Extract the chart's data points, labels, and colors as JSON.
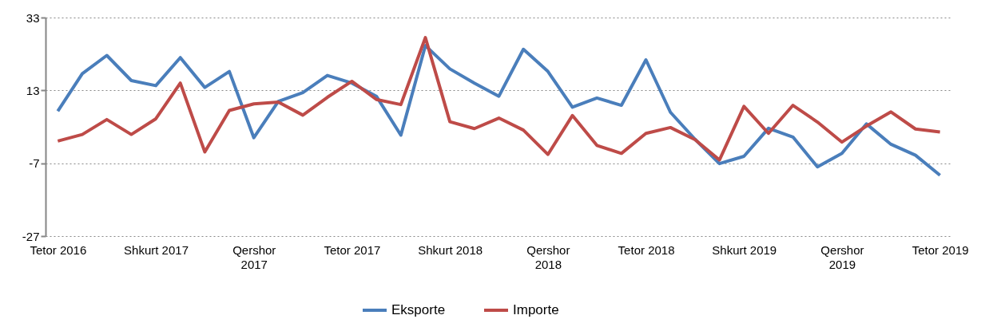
{
  "chart_data": {
    "type": "line",
    "categories": [
      "Tetor 2016",
      null,
      null,
      null,
      "Shkurt 2017",
      null,
      null,
      null,
      "Qershor 2017",
      null,
      null,
      null,
      "Tetor 2017",
      null,
      null,
      null,
      "Shkurt 2018",
      null,
      null,
      null,
      "Qershor 2018",
      null,
      null,
      null,
      "Tetor 2018",
      null,
      null,
      null,
      "Shkurt 2019",
      null,
      null,
      null,
      "Qershor 2019",
      null,
      null,
      null,
      "Tetor 2019"
    ],
    "series": [
      {
        "name": "Eksporte",
        "color": "#4a7ebb",
        "values": [
          7.3,
          17.6,
          22.6,
          15.7,
          14.3,
          22.0,
          13.8,
          18.2,
          0,
          10.0,
          12.4,
          17.1,
          15.0,
          11.4,
          0.7,
          25.3,
          18.9,
          15.0,
          11.4,
          24.3,
          18.2,
          8.4,
          10.9,
          8.9,
          21.4,
          7.0,
          -0.4,
          -7.1,
          -5.1,
          2.6,
          0.2,
          -8.0,
          -4.3,
          3.8,
          -1.8,
          -4.8,
          -10.3
        ]
      },
      {
        "name": "Importe",
        "color": "#be4b48",
        "values": [
          -0.9,
          0.9,
          5.0,
          0.9,
          5.2,
          15.0,
          -3.9,
          7.5,
          9.3,
          9.8,
          6.2,
          11.1,
          15.5,
          10.5,
          9.1,
          27.5,
          4.4,
          2.5,
          5.4,
          2.1,
          -4.6,
          6.1,
          -2.1,
          -4.3,
          1.2,
          2.8,
          -0.5,
          -6.1,
          8.6,
          1.2,
          8.9,
          4.3,
          -1.2,
          3.2,
          7.1,
          2.4,
          1.6
        ]
      }
    ],
    "ylim": [
      -27,
      33
    ],
    "yticks": [
      -27,
      -7,
      13,
      33
    ],
    "grid": "y",
    "legend": "bottom"
  }
}
